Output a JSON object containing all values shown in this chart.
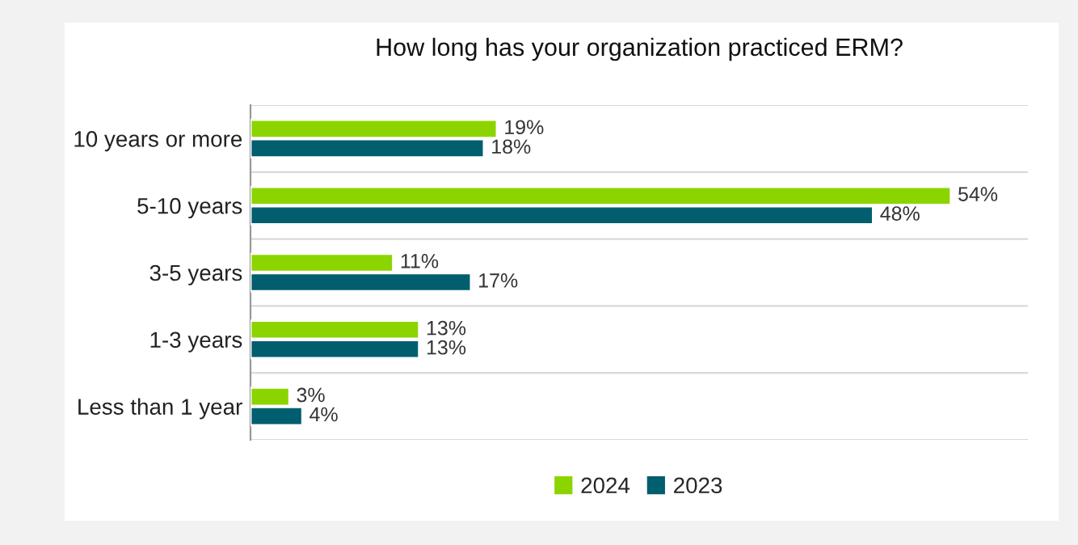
{
  "chart_data": {
    "type": "bar",
    "orientation": "horizontal",
    "title": "How long has your organization practiced ERM?",
    "categories": [
      "10 years or more",
      "5-10 years",
      "3-5 years",
      "1-3 years",
      "Less than 1 year"
    ],
    "series": [
      {
        "name": "2024",
        "color": "#8cd400",
        "values": [
          19,
          54,
          11,
          13,
          3
        ],
        "value_labels": [
          "19%",
          "54%",
          "11%",
          "13%",
          "3%"
        ]
      },
      {
        "name": "2023",
        "color": "#005e6e",
        "values": [
          18,
          48,
          17,
          13,
          4
        ],
        "value_labels": [
          "18%",
          "48%",
          "17%",
          "13%",
          "4%"
        ]
      }
    ],
    "grid": "y",
    "legend": "bottom"
  }
}
